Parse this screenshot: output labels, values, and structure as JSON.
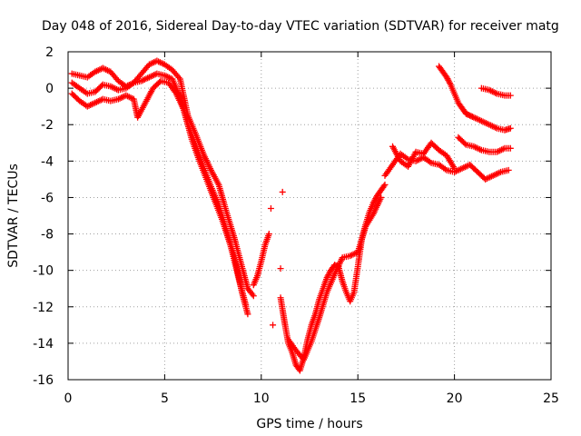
{
  "chart_data": {
    "type": "scatter",
    "title": "Day 048 of 2016, Sidereal Day-to-day VTEC variation (SDTVAR) for receiver matg",
    "xlabel": "GPS time / hours",
    "ylabel": "SDTVAR / TECUs",
    "xlim": [
      0,
      25
    ],
    "ylim": [
      -16,
      2
    ],
    "xticks": [
      0,
      5,
      10,
      15,
      20,
      25
    ],
    "yticks": [
      -16,
      -14,
      -12,
      -10,
      -8,
      -6,
      -4,
      -2,
      0,
      2
    ],
    "grid": true,
    "marker": "+",
    "colors": {
      "series": "#ff0000",
      "grid": "#a0a0a0",
      "axis": "#000000"
    },
    "series": [
      {
        "x": [
          0.2,
          0.6,
          1.0,
          1.4,
          1.8,
          2.2,
          2.6,
          3.0,
          3.4,
          3.8,
          4.2,
          4.6,
          5.0,
          5.4,
          5.8,
          6.2,
          6.6,
          7.0,
          7.4,
          7.8,
          8.2,
          8.6,
          9.0,
          9.3,
          9.6
        ],
        "y": [
          0.8,
          0.7,
          0.6,
          0.9,
          1.1,
          0.9,
          0.4,
          0.1,
          0.3,
          0.8,
          1.3,
          1.5,
          1.3,
          1.0,
          0.5,
          -1.5,
          -2.5,
          -3.6,
          -4.5,
          -5.3,
          -6.8,
          -8.2,
          -9.8,
          -11.0,
          -11.4
        ]
      },
      {
        "x": [
          0.2,
          0.6,
          1.0,
          1.4,
          1.8,
          2.2,
          2.6,
          3.0,
          3.4,
          3.8,
          4.2,
          4.6,
          5.0,
          5.4,
          5.8,
          6.2,
          6.6,
          7.0,
          7.4,
          7.8,
          8.2,
          8.6,
          9.0,
          9.3
        ],
        "y": [
          0.3,
          0.0,
          -0.3,
          -0.2,
          0.2,
          0.1,
          -0.1,
          0.0,
          0.3,
          0.4,
          0.6,
          0.8,
          0.7,
          0.5,
          -0.5,
          -2.0,
          -3.1,
          -4.3,
          -5.4,
          -6.4,
          -7.8,
          -9.2,
          -11.2,
          -12.4
        ]
      },
      {
        "x": [
          0.2,
          0.6,
          1.0,
          1.4,
          1.8,
          2.2,
          2.6,
          3.0,
          3.4,
          3.6,
          4.0,
          4.4,
          4.8,
          5.2,
          5.6,
          6.0,
          6.4,
          6.8,
          7.2,
          7.6,
          8.0,
          8.4,
          8.8,
          9.2
        ],
        "y": [
          -0.3,
          -0.7,
          -1.0,
          -0.8,
          -0.6,
          -0.7,
          -0.6,
          -0.4,
          -0.6,
          -1.6,
          -0.8,
          0.0,
          0.4,
          0.3,
          -0.3,
          -1.2,
          -2.8,
          -4.0,
          -5.1,
          -6.2,
          -7.3,
          -8.6,
          -10.3,
          -11.9
        ]
      },
      {
        "x": [
          9.6,
          9.8,
          10.0,
          10.2,
          10.4
        ],
        "y": [
          -10.8,
          -10.3,
          -9.5,
          -8.6,
          -8.0
        ]
      },
      {
        "x": [
          10.5,
          10.6,
          11.0,
          11.1
        ],
        "y": [
          -6.6,
          -13.0,
          -9.9,
          -5.7
        ]
      },
      {
        "x": [
          11.0,
          11.2,
          11.4,
          11.6,
          11.8,
          12.0,
          12.2,
          12.4,
          12.6,
          12.8,
          13.0,
          13.2,
          13.4,
          13.6,
          13.8,
          14.0,
          14.2,
          14.4,
          14.6,
          14.8,
          15.0,
          15.2,
          15.4,
          15.6,
          15.8,
          16.0,
          16.2,
          16.4
        ],
        "y": [
          -11.5,
          -12.8,
          -14.0,
          -14.5,
          -15.2,
          -15.5,
          -14.8,
          -13.8,
          -13.0,
          -12.4,
          -11.6,
          -11.0,
          -10.4,
          -10.0,
          -9.7,
          -9.8,
          -10.6,
          -11.2,
          -11.7,
          -11.2,
          -9.8,
          -8.3,
          -7.5,
          -6.8,
          -6.3,
          -5.9,
          -5.6,
          -5.3
        ]
      },
      {
        "x": [
          11.4,
          11.8,
          12.2,
          12.6,
          13.0,
          13.4,
          13.8,
          14.2,
          14.6,
          15.0,
          15.4,
          15.8,
          16.2
        ],
        "y": [
          -13.8,
          -14.4,
          -14.9,
          -13.9,
          -12.6,
          -11.2,
          -10.2,
          -9.3,
          -9.2,
          -9.0,
          -7.6,
          -6.9,
          -6.0
        ]
      },
      {
        "x": [
          16.4,
          16.8,
          17.2,
          17.6,
          18.0,
          18.4,
          18.8,
          19.2,
          19.6,
          20.0,
          20.4,
          20.8,
          21.2,
          21.6,
          22.0,
          22.4,
          22.8
        ],
        "y": [
          -4.8,
          -4.2,
          -3.6,
          -3.9,
          -4.0,
          -3.8,
          -4.1,
          -4.2,
          -4.5,
          -4.6,
          -4.4,
          -4.2,
          -4.6,
          -5.0,
          -4.8,
          -4.6,
          -4.5
        ]
      },
      {
        "x": [
          16.8,
          17.2,
          17.6,
          18.0,
          18.4,
          18.8,
          19.2,
          19.6,
          20.0
        ],
        "y": [
          -3.2,
          -4.0,
          -4.3,
          -3.5,
          -3.6,
          -3.0,
          -3.4,
          -3.7,
          -4.4
        ]
      },
      {
        "x": [
          19.2,
          19.4,
          19.6,
          19.8,
          20.0,
          20.2,
          20.4,
          20.6,
          20.8,
          21.0,
          21.4,
          21.8,
          22.2,
          22.6,
          22.9
        ],
        "y": [
          1.2,
          0.9,
          0.6,
          0.2,
          -0.3,
          -0.8,
          -1.1,
          -1.4,
          -1.5,
          -1.6,
          -1.8,
          -2.0,
          -2.2,
          -2.3,
          -2.2
        ]
      },
      {
        "x": [
          20.2,
          20.6,
          21.0,
          21.4,
          21.8,
          22.2,
          22.6,
          22.9
        ],
        "y": [
          -2.7,
          -3.1,
          -3.2,
          -3.4,
          -3.5,
          -3.5,
          -3.3,
          -3.3
        ]
      },
      {
        "x": [
          21.4,
          21.8,
          22.2,
          22.6,
          22.9
        ],
        "y": [
          0.0,
          -0.1,
          -0.3,
          -0.4,
          -0.4
        ]
      }
    ]
  }
}
